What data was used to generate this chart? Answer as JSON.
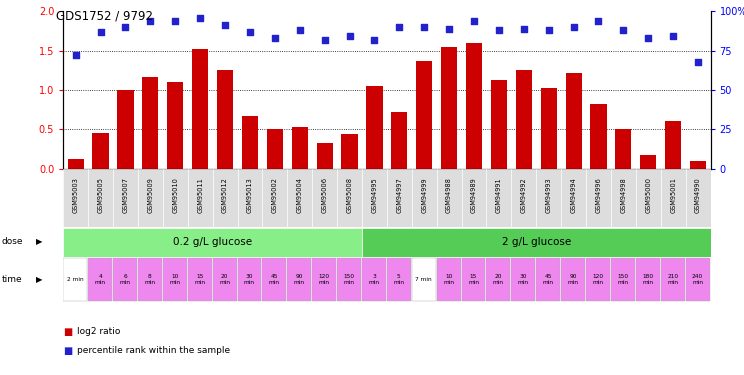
{
  "title": "GDS1752 / 9792",
  "samples": [
    "GSM95003",
    "GSM95005",
    "GSM95007",
    "GSM95009",
    "GSM95010",
    "GSM95011",
    "GSM95012",
    "GSM95013",
    "GSM95002",
    "GSM95004",
    "GSM95006",
    "GSM95008",
    "GSM94995",
    "GSM94997",
    "GSM94999",
    "GSM94988",
    "GSM94989",
    "GSM94991",
    "GSM94992",
    "GSM94993",
    "GSM94994",
    "GSM94996",
    "GSM94998",
    "GSM95000",
    "GSM95001",
    "GSM94990"
  ],
  "log2_ratio": [
    0.13,
    0.46,
    1.0,
    1.17,
    1.1,
    1.52,
    1.25,
    0.67,
    0.5,
    0.53,
    0.33,
    0.44,
    1.05,
    0.72,
    1.37,
    1.55,
    1.6,
    1.13,
    1.25,
    1.02,
    1.22,
    0.82,
    0.5,
    0.17,
    0.6,
    0.1
  ],
  "percentile_rank": [
    72,
    87,
    90,
    94,
    94,
    96,
    91,
    87,
    83,
    88,
    82,
    84,
    82,
    90,
    90,
    89,
    94,
    88,
    89,
    88,
    90,
    94,
    88,
    83,
    84,
    68
  ],
  "dose_label1": "0.2 g/L glucose",
  "dose_label2": "2 g/L glucose",
  "bar_color": "#cc0000",
  "dot_color": "#2222cc",
  "dose_color1": "#88ee88",
  "dose_color2": "#55cc55",
  "time_color": "#ee88ee",
  "time_color_white": "#ffffff",
  "sample_bg": "#dddddd",
  "ylim": [
    0,
    2
  ],
  "y2lim": [
    0,
    100
  ],
  "yticks": [
    0,
    0.5,
    1.0,
    1.5,
    2.0
  ],
  "y2ticks": [
    0,
    25,
    50,
    75,
    100
  ],
  "n_group1": 12,
  "n_group2": 14,
  "time_labels": [
    "2 min",
    "4\nmin",
    "6\nmin",
    "8\nmin",
    "10\nmin",
    "15\nmin",
    "20\nmin",
    "30\nmin",
    "45\nmin",
    "90\nmin",
    "120\nmin",
    "150\nmin",
    "3\nmin",
    "5\nmin",
    "7 min",
    "10\nmin",
    "15\nmin",
    "20\nmin",
    "30\nmin",
    "45\nmin",
    "90\nmin",
    "120\nmin",
    "150\nmin",
    "180\nmin",
    "210\nmin",
    "240\nmin"
  ]
}
